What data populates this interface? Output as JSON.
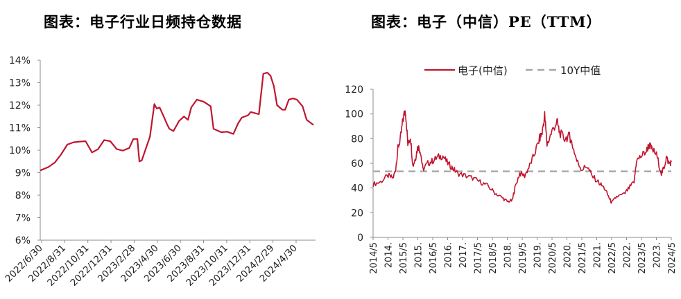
{
  "chart_data": [
    {
      "type": "line",
      "title": "图表：电子行业日频持仓数据",
      "y_tick_labels": [
        "14%",
        "13%",
        "12%",
        "11%",
        "10%",
        "9%",
        "8%",
        "7%",
        "6%"
      ],
      "ylim": [
        6,
        14
      ],
      "x_tick_labels": [
        "2022/6/30",
        "2022/8/31",
        "2022/10/31",
        "2022/12/31",
        "2023/2/28",
        "2023/4/30",
        "2023/6/30",
        "2023/8/31",
        "2023/10/31",
        "2023/12/31",
        "2024/2/29",
        "2024/4/30"
      ],
      "x_start": "2022-06-30",
      "x_end": "2024-05-10",
      "grid": false,
      "series": [
        {
          "color": "#C0152F",
          "points": [
            [
              "2022-06-30",
              9.1
            ],
            [
              "2022-07-20",
              9.25
            ],
            [
              "2022-08-05",
              9.45
            ],
            [
              "2022-08-20",
              9.8
            ],
            [
              "2022-09-05",
              10.25
            ],
            [
              "2022-09-20",
              10.35
            ],
            [
              "2022-10-05",
              10.38
            ],
            [
              "2022-10-20",
              10.4
            ],
            [
              "2022-11-05",
              9.9
            ],
            [
              "2022-11-20",
              10.05
            ],
            [
              "2022-12-05",
              10.45
            ],
            [
              "2022-12-20",
              10.4
            ],
            [
              "2023-01-05",
              10.05
            ],
            [
              "2023-01-20",
              9.98
            ],
            [
              "2023-02-05",
              10.1
            ],
            [
              "2023-02-15",
              10.5
            ],
            [
              "2023-02-25",
              10.5
            ],
            [
              "2023-03-02",
              9.5
            ],
            [
              "2023-03-08",
              9.55
            ],
            [
              "2023-03-28",
              10.6
            ],
            [
              "2023-04-08",
              12.05
            ],
            [
              "2023-04-14",
              11.85
            ],
            [
              "2023-04-21",
              11.9
            ],
            [
              "2023-05-01",
              11.5
            ],
            [
              "2023-05-08",
              11.2
            ],
            [
              "2023-05-15",
              10.95
            ],
            [
              "2023-05-25",
              10.85
            ],
            [
              "2023-06-08",
              11.3
            ],
            [
              "2023-06-20",
              11.5
            ],
            [
              "2023-06-30",
              11.35
            ],
            [
              "2023-07-08",
              11.9
            ],
            [
              "2023-07-22",
              12.25
            ],
            [
              "2023-08-08",
              12.15
            ],
            [
              "2023-08-25",
              11.95
            ],
            [
              "2023-09-01",
              10.95
            ],
            [
              "2023-09-20",
              10.8
            ],
            [
              "2023-10-05",
              10.82
            ],
            [
              "2023-10-20",
              10.72
            ],
            [
              "2023-11-01",
              11.2
            ],
            [
              "2023-11-10",
              11.45
            ],
            [
              "2023-11-25",
              11.55
            ],
            [
              "2023-12-02",
              11.7
            ],
            [
              "2023-12-12",
              11.65
            ],
            [
              "2023-12-22",
              11.6
            ],
            [
              "2024-01-02",
              13.4
            ],
            [
              "2024-01-12",
              13.45
            ],
            [
              "2024-01-20",
              13.3
            ],
            [
              "2024-01-28",
              12.85
            ],
            [
              "2024-02-05",
              12.0
            ],
            [
              "2024-02-18",
              11.8
            ],
            [
              "2024-02-25",
              11.8
            ],
            [
              "2024-03-05",
              12.25
            ],
            [
              "2024-03-15",
              12.3
            ],
            [
              "2024-03-25",
              12.25
            ],
            [
              "2024-04-08",
              11.95
            ],
            [
              "2024-04-18",
              11.35
            ],
            [
              "2024-05-05",
              11.12
            ]
          ]
        }
      ]
    },
    {
      "type": "line",
      "title": "图表：电子（中信）PE（TTM）",
      "y_tick_labels": [
        "120",
        "100",
        "80",
        "60",
        "40",
        "20",
        "0"
      ],
      "ylim": [
        0,
        120
      ],
      "x_tick_labels": [
        "2014/5",
        "2014.",
        "2015/5",
        "2015.",
        "2016/5",
        "2016.",
        "2017.",
        "2017/5",
        "2018/5",
        "2018.",
        "2019/5",
        "2019.",
        "2020/5",
        "2020.",
        "2021/5",
        "2021.",
        "2022/5",
        "2022.",
        "2023/5",
        "2023.",
        "2024/5"
      ],
      "x_start": "2014-05",
      "x_end": "2024-05",
      "grid": false,
      "legend": {
        "position": "top"
      },
      "series": [
        {
          "name": "电子(中信)",
          "color": "#C0152F",
          "points": [
            [
              "2014-05",
              43
            ],
            [
              "2014-08",
              45
            ],
            [
              "2014-11",
              50
            ],
            [
              "2015-01",
              48
            ],
            [
              "2015-02",
              55
            ],
            [
              "2015-03",
              72
            ],
            [
              "2015-04",
              80
            ],
            [
              "2015-05",
              95
            ],
            [
              "2015-06",
              104
            ],
            [
              "2015-07",
              75
            ],
            [
              "2015-08",
              82
            ],
            [
              "2015-09",
              58
            ],
            [
              "2015-10",
              64
            ],
            [
              "2015-11",
              74
            ],
            [
              "2015-12",
              70
            ],
            [
              "2016-01",
              55
            ],
            [
              "2016-03",
              60
            ],
            [
              "2016-05",
              62
            ],
            [
              "2016-07",
              65
            ],
            [
              "2016-09",
              66
            ],
            [
              "2016-11",
              60
            ],
            [
              "2017-01",
              56
            ],
            [
              "2017-03",
              52
            ],
            [
              "2017-06",
              50
            ],
            [
              "2017-09",
              48
            ],
            [
              "2017-12",
              45
            ],
            [
              "2018-03",
              42
            ],
            [
              "2018-06",
              36
            ],
            [
              "2018-09",
              32
            ],
            [
              "2018-11",
              29
            ],
            [
              "2019-01",
              30
            ],
            [
              "2019-02",
              40
            ],
            [
              "2019-04",
              52
            ],
            [
              "2019-06",
              50
            ],
            [
              "2019-08",
              58
            ],
            [
              "2019-10",
              68
            ],
            [
              "2019-12",
              80
            ],
            [
              "2020-01",
              85
            ],
            [
              "2020-02",
              99
            ],
            [
              "2020-03",
              75
            ],
            [
              "2020-05",
              86
            ],
            [
              "2020-07",
              94
            ],
            [
              "2020-08",
              85
            ],
            [
              "2020-10",
              80
            ],
            [
              "2020-12",
              82
            ],
            [
              "2021-01",
              76
            ],
            [
              "2021-03",
              62
            ],
            [
              "2021-05",
              55
            ],
            [
              "2021-07",
              58
            ],
            [
              "2021-09",
              50
            ],
            [
              "2021-12",
              44
            ],
            [
              "2022-02",
              40
            ],
            [
              "2022-04",
              32
            ],
            [
              "2022-05",
              28
            ],
            [
              "2022-07",
              33
            ],
            [
              "2022-10",
              35
            ],
            [
              "2022-12",
              40
            ],
            [
              "2023-02",
              45
            ],
            [
              "2023-03",
              62
            ],
            [
              "2023-05",
              66
            ],
            [
              "2023-07",
              70
            ],
            [
              "2023-08",
              75
            ],
            [
              "2023-09",
              72
            ],
            [
              "2023-11",
              67
            ],
            [
              "2024-01",
              52
            ],
            [
              "2024-02",
              56
            ],
            [
              "2024-03",
              65
            ],
            [
              "2024-04",
              60
            ],
            [
              "2024-05",
              61
            ]
          ]
        },
        {
          "name": "10Y中值",
          "color": "#A6A6A6",
          "dashed": true,
          "value": 53.5
        }
      ]
    }
  ]
}
